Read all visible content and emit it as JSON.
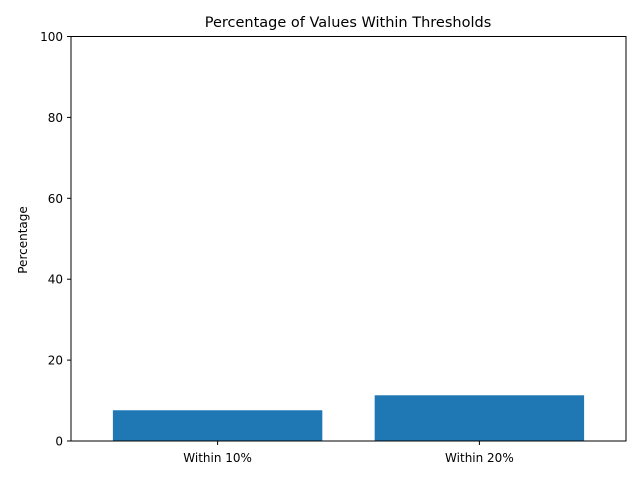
{
  "chart_data": {
    "type": "bar",
    "title": "Percentage of Values Within Thresholds",
    "xlabel": "",
    "ylabel": "Percentage",
    "categories": [
      "Within 10%",
      "Within 20%"
    ],
    "values": [
      7.6,
      11.3
    ],
    "ylim": [
      0,
      100
    ],
    "yticks": [
      0,
      20,
      40,
      60,
      80,
      100
    ],
    "grid": false,
    "legend": "none",
    "bar_color": "#1f77b4"
  }
}
